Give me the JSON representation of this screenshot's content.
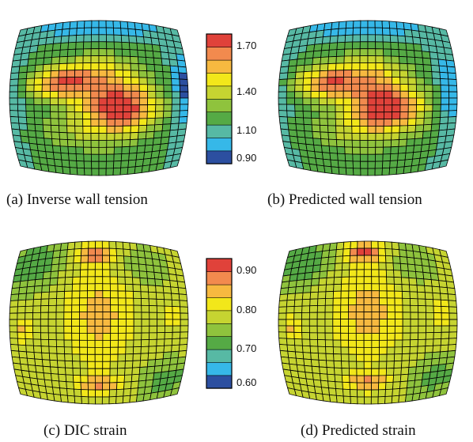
{
  "panels": [
    {
      "id": "a",
      "caption": "(a) Inverse wall tension",
      "scheme": "tension"
    },
    {
      "id": "b",
      "caption": "(b) Predicted wall tension",
      "scheme": "tension"
    },
    {
      "id": "c",
      "caption": "(c) DIC strain",
      "scheme": "strain"
    },
    {
      "id": "d",
      "caption": "(d) Predicted strain",
      "scheme": "strain"
    }
  ],
  "legends": {
    "tension": {
      "ticks": [
        "1.70",
        "1.40",
        "1.10",
        "0.90"
      ],
      "min": 0.9,
      "max": 1.75
    },
    "strain": {
      "ticks": [
        "0.90",
        "0.80",
        "0.70",
        "0.60"
      ],
      "min": 0.6,
      "max": 0.92
    }
  },
  "colors": {
    "scale": [
      "#2c4fa0",
      "#36b8e8",
      "#57b9a4",
      "#55aa45",
      "#8fc33d",
      "#c6d431",
      "#f2e71a",
      "#f7b940",
      "#f28a4e",
      "#e0423a"
    ],
    "grid": "#000000"
  }
}
